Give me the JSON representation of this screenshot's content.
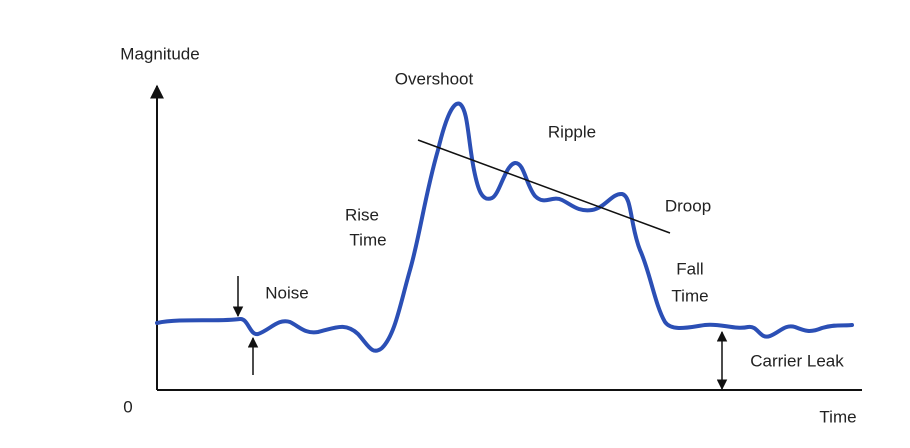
{
  "axes": {
    "y_label": "Magnitude",
    "x_label": "Time",
    "origin": "0"
  },
  "labels": {
    "overshoot": "Overshoot",
    "ripple": "Ripple",
    "rise_time": [
      "Rise",
      "Time"
    ],
    "droop": "Droop",
    "noise": "Noise",
    "fall_time": [
      "Fall",
      "Time"
    ],
    "carrier_leak": "Carrier Leak"
  }
}
